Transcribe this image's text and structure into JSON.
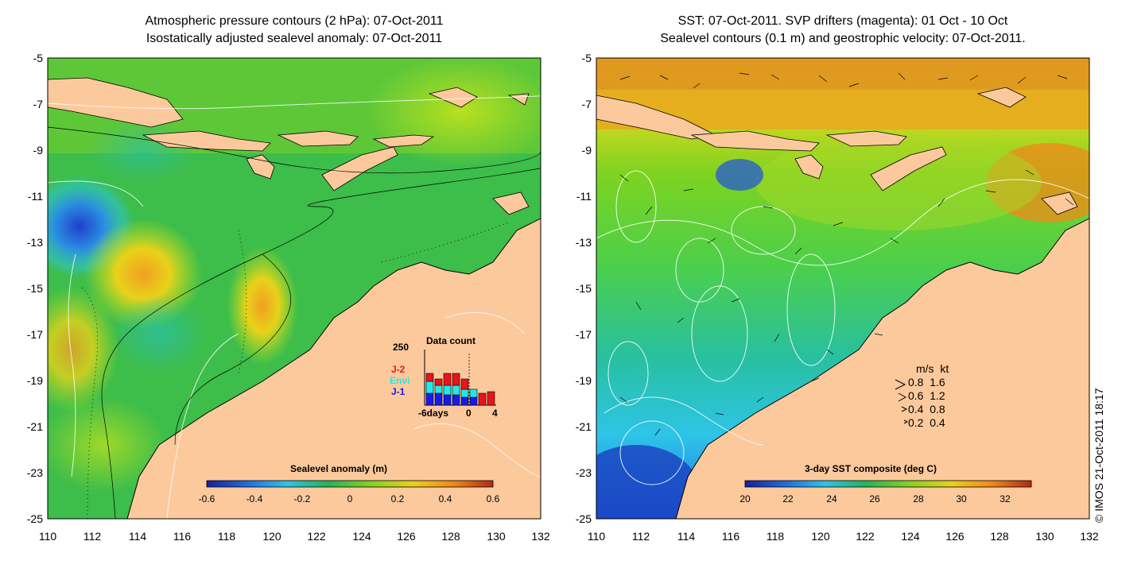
{
  "left_panel": {
    "title_line1": "Atmospheric pressure contours (2 hPa): 07-Oct-2011",
    "title_line2": "Isostatically adjusted sealevel anomaly: 07-Oct-2011",
    "colorbar": {
      "title": "Sealevel anomaly (m)",
      "ticks": [
        "-0.6",
        "-0.4",
        "-0.2",
        "0",
        "0.2",
        "0.4",
        "0.6"
      ],
      "colors": [
        "#1a1e9c",
        "#1f6ce0",
        "#2ec4e8",
        "#22b35c",
        "#7ed321",
        "#e8d21a",
        "#f08a1a",
        "#b22b14"
      ]
    },
    "inset": {
      "title": "Data count",
      "ymax_label": "250",
      "legend": [
        {
          "label": "J-2",
          "color": "#e8141a"
        },
        {
          "label": "Envi",
          "color": "#22e8e8"
        },
        {
          "label": "J-1",
          "color": "#1a1ae8"
        }
      ],
      "x_labels": [
        "-6days",
        "0",
        "4"
      ]
    }
  },
  "right_panel": {
    "title_line1": "SST: 07-Oct-2011. SVP drifters (magenta): 01 Oct - 10 Oct",
    "title_line2": "Sealevel contours (0.1 m) and geostrophic velocity: 07-Oct-2011.",
    "colorbar": {
      "title": "3-day SST composite (deg C)",
      "ticks": [
        "20",
        "22",
        "24",
        "26",
        "28",
        "30",
        "32"
      ],
      "colors": [
        "#1a1e9c",
        "#1f6ce0",
        "#2ec4e8",
        "#22b35c",
        "#7ed321",
        "#e8d21a",
        "#f08a1a",
        "#b22b14"
      ]
    },
    "velocity_legend": {
      "header": "m/s  kt",
      "rows": [
        "0.8  1.6",
        "0.6  1.2",
        "0.4  0.8",
        "0.2  0.4"
      ]
    }
  },
  "axes": {
    "y_ticks": [
      "-5",
      "-7",
      "-9",
      "-11",
      "-13",
      "-15",
      "-17",
      "-19",
      "-21",
      "-23",
      "-25"
    ],
    "x_ticks": [
      "110",
      "112",
      "114",
      "116",
      "118",
      "120",
      "122",
      "124",
      "126",
      "128",
      "130",
      "132"
    ]
  },
  "copyright": "© IMOS 21-Oct-2011 18:17",
  "colors": {
    "land": "#fcc99c",
    "ocean_green": "#3dbd4a",
    "coast": "#000000"
  }
}
